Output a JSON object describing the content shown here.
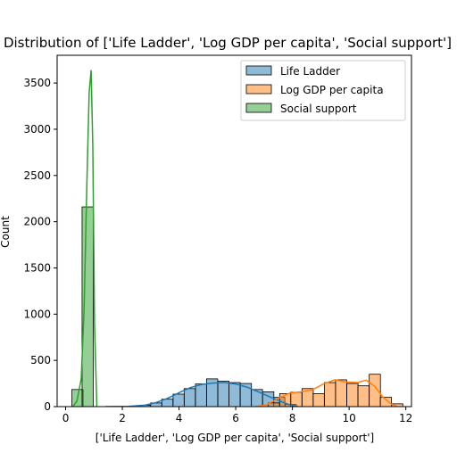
{
  "chart_data": {
    "type": "bar",
    "title": "Distribution of ['Life Ladder', 'Log GDP per capita', 'Social support']",
    "xlabel": "['Life Ladder', 'Log GDP per capita', 'Social support']",
    "ylabel": "Count",
    "xlim": [
      -0.3,
      12.2
    ],
    "ylim": [
      0,
      3800
    ],
    "xticks": [
      0,
      2,
      4,
      6,
      8,
      10,
      12
    ],
    "yticks": [
      0,
      500,
      1000,
      1500,
      2000,
      2500,
      3000,
      3500
    ],
    "legend_position": "top-right",
    "bin_width": 0.395,
    "series": [
      {
        "name": "Life Ladder",
        "fill": "#1f77b4",
        "line": "#1f77b4",
        "bin_starts": [
          2.6,
          3.0,
          3.39,
          3.79,
          4.18,
          4.58,
          4.97,
          5.37,
          5.76,
          6.16,
          6.55,
          6.95,
          7.34,
          7.74
        ],
        "counts": [
          15,
          40,
          80,
          135,
          195,
          245,
          300,
          275,
          260,
          250,
          185,
          160,
          100,
          25
        ],
        "kde_x": [
          1.4,
          2.2,
          2.8,
          3.2,
          3.6,
          4.0,
          4.4,
          4.8,
          5.2,
          5.6,
          6.0,
          6.4,
          6.8,
          7.2,
          7.6,
          7.9,
          8.2
        ],
        "kde_y": [
          0,
          3,
          15,
          45,
          90,
          150,
          205,
          240,
          255,
          260,
          245,
          210,
          160,
          105,
          55,
          20,
          0
        ]
      },
      {
        "name": "Log GDP per capita",
        "fill": "#ff7f0e",
        "line": "#ff7f0e",
        "bin_starts": [
          7.15,
          7.55,
          7.94,
          8.34,
          8.73,
          9.13,
          9.52,
          9.92,
          10.31,
          10.71,
          11.1,
          11.5
        ],
        "counts": [
          40,
          140,
          155,
          195,
          140,
          260,
          290,
          250,
          225,
          350,
          100,
          30
        ],
        "kde_x": [
          6.7,
          7.1,
          7.5,
          7.9,
          8.3,
          8.7,
          9.1,
          9.5,
          9.9,
          10.3,
          10.6,
          10.9,
          11.2,
          11.5,
          11.7
        ],
        "kde_y": [
          0,
          20,
          90,
          145,
          160,
          180,
          245,
          290,
          265,
          260,
          285,
          220,
          100,
          25,
          0
        ]
      },
      {
        "name": "Social support",
        "fill": "#2ca02c",
        "line": "#2ca02c",
        "bin_starts": [
          0.22,
          0.58
        ],
        "counts": [
          185,
          2160
        ],
        "kde_x": [
          0.25,
          0.4,
          0.55,
          0.65,
          0.75,
          0.83,
          0.9,
          0.96,
          1.02,
          1.1
        ],
        "kde_y": [
          0,
          60,
          300,
          1050,
          2400,
          3400,
          3640,
          2800,
          900,
          0
        ]
      }
    ]
  }
}
